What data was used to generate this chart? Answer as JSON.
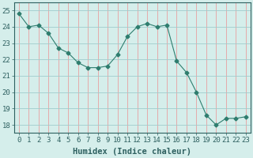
{
  "x": [
    0,
    1,
    2,
    3,
    4,
    5,
    6,
    7,
    8,
    9,
    10,
    11,
    12,
    13,
    14,
    15,
    16,
    17,
    18,
    19,
    20,
    21,
    22,
    23
  ],
  "y": [
    24.8,
    24.0,
    24.1,
    23.6,
    22.7,
    22.4,
    21.8,
    21.5,
    21.5,
    21.6,
    22.3,
    23.4,
    24.0,
    24.2,
    24.0,
    24.1,
    21.9,
    21.2,
    20.0,
    18.6,
    18.0,
    18.4,
    18.4,
    18.5
  ],
  "line_color": "#2e7d6e",
  "marker": "D",
  "marker_size": 2.5,
  "bg_color": "#d5eeeb",
  "vgrid_color": "#e8a0a0",
  "hgrid_color": "#a0cccc",
  "xlabel": "Humidex (Indice chaleur)",
  "ylim": [
    17.5,
    25.5
  ],
  "yticks": [
    18,
    19,
    20,
    21,
    22,
    23,
    24,
    25
  ],
  "xticks": [
    0,
    1,
    2,
    3,
    4,
    5,
    6,
    7,
    8,
    9,
    10,
    11,
    12,
    13,
    14,
    15,
    16,
    17,
    18,
    19,
    20,
    21,
    22,
    23
  ],
  "xlabel_fontsize": 7.5,
  "tick_fontsize": 6.5
}
